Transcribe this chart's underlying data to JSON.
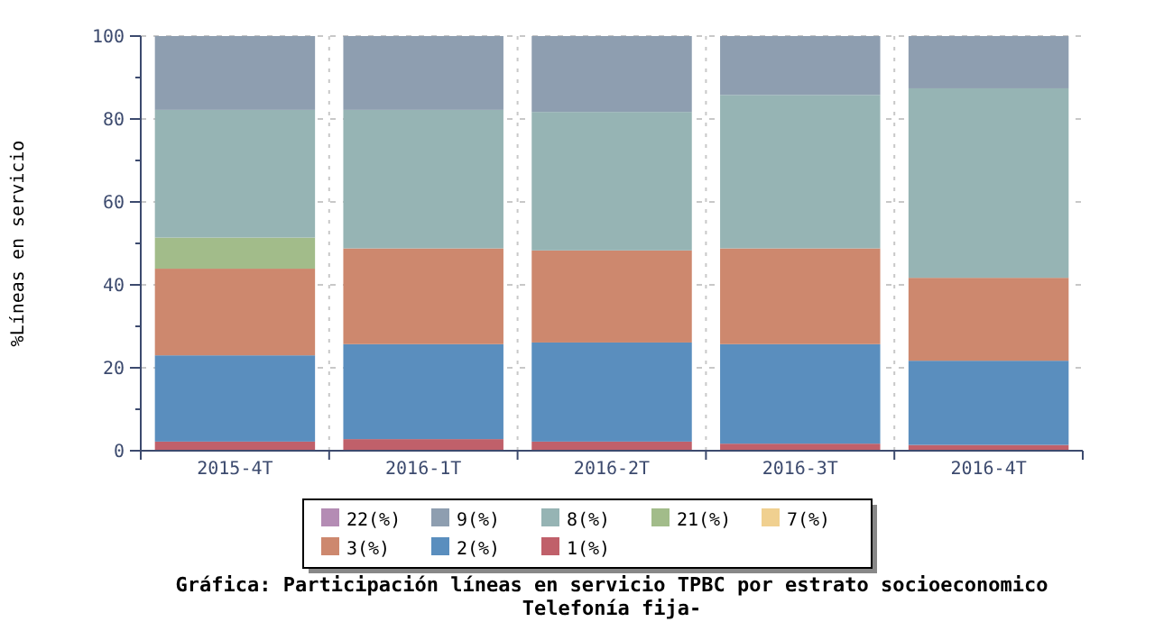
{
  "chart_data": {
    "type": "bar",
    "stacked": true,
    "title": "Gráfica: Participación líneas en servicio TPBC por estrato socioeconomico",
    "subtitle": "Telefonía fija-",
    "ylabel": "%Líneas en servicio",
    "categories": [
      "2015-4T",
      "2016-1T",
      "2016-2T",
      "2016-3T",
      "2016-4T"
    ],
    "series": [
      {
        "name": "1(%)",
        "color": "#c0606a",
        "values": [
          2.2,
          2.8,
          2.2,
          1.7,
          1.4
        ]
      },
      {
        "name": "2(%)",
        "color": "#5a8ebe",
        "values": [
          20.8,
          22.9,
          23.9,
          24.0,
          20.3
        ]
      },
      {
        "name": "3(%)",
        "color": "#cd886e",
        "values": [
          20.9,
          23.1,
          22.2,
          23.1,
          20.0
        ]
      },
      {
        "name": "7(%)",
        "color": "#f0d090",
        "values": [
          0,
          0,
          0,
          0,
          0
        ]
      },
      {
        "name": "21(%)",
        "color": "#a2bc8a",
        "values": [
          7.5,
          0,
          0,
          0,
          0
        ]
      },
      {
        "name": "8(%)",
        "color": "#96b4b4",
        "values": [
          30.8,
          33.4,
          33.4,
          37.0,
          45.7
        ]
      },
      {
        "name": "9(%)",
        "color": "#8e9eb0",
        "values": [
          17.8,
          17.8,
          18.3,
          14.2,
          12.6
        ]
      },
      {
        "name": "22(%)",
        "color": "#b48cb4",
        "values": [
          0,
          0,
          0,
          0,
          0
        ]
      }
    ],
    "ylim": [
      0,
      100
    ],
    "yticks": [
      0,
      20,
      40,
      60,
      80,
      100
    ],
    "grid": true,
    "legend": "bottom"
  }
}
